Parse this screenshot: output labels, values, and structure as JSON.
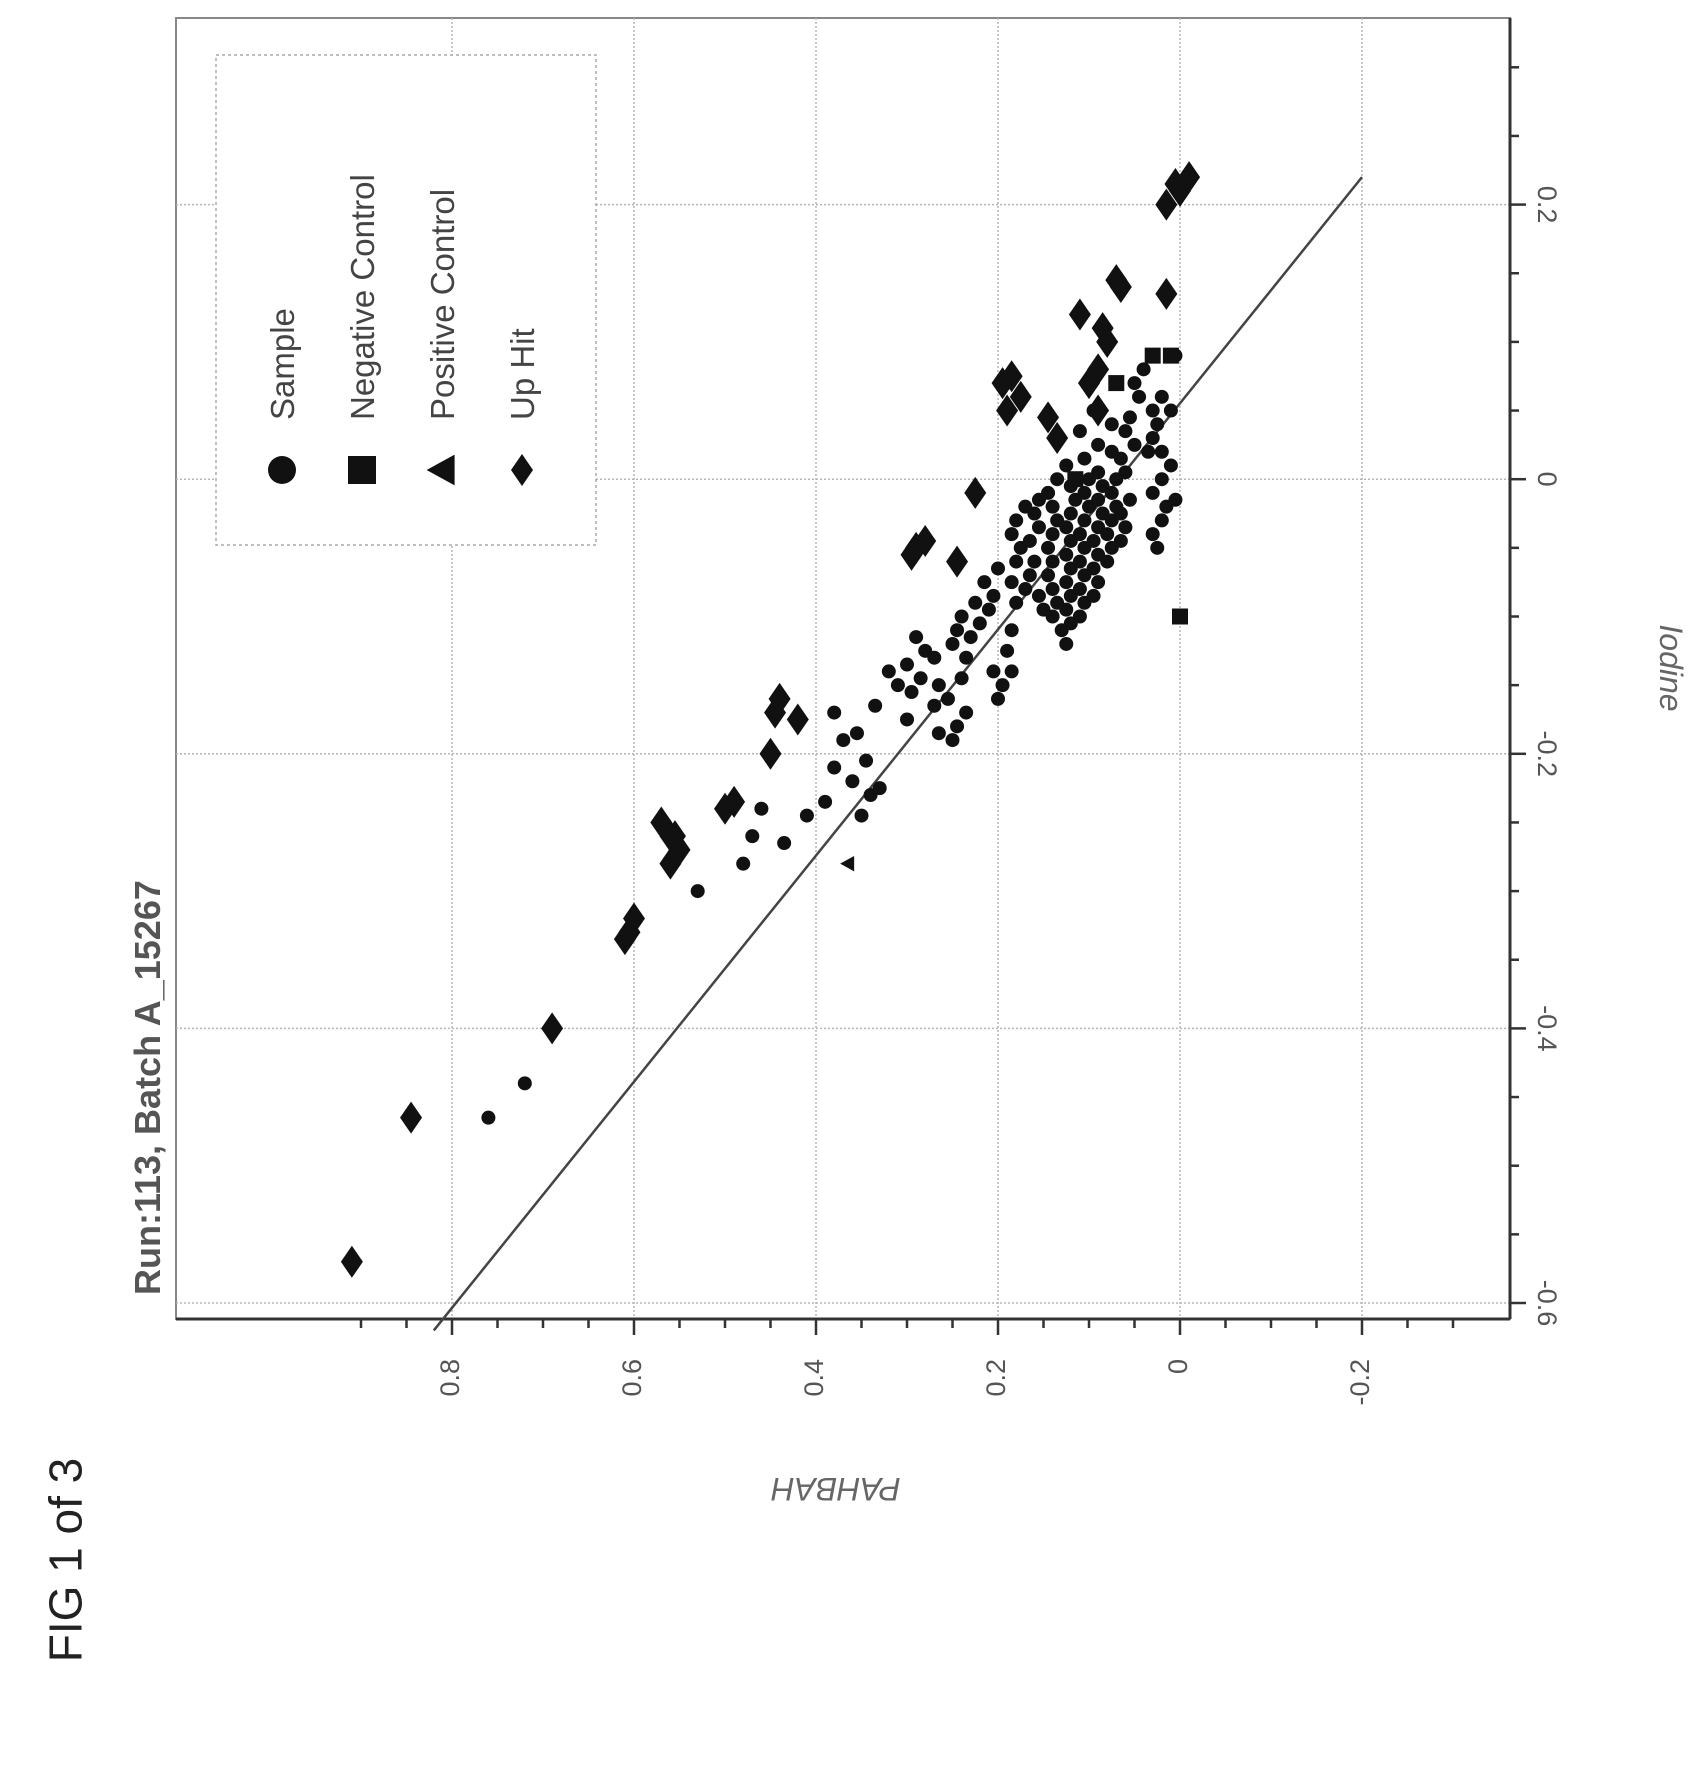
{
  "figure_label": "FIG 1 of 3",
  "chart_data": {
    "type": "scatter",
    "title": "Run:113, Batch A_15267",
    "xlabel": "Iodine",
    "ylabel": "PAHBAH",
    "xlim": [
      -0.62,
      0.31
    ],
    "ylim": [
      -0.31,
      0.93
    ],
    "x_ticks": [
      "-0.6",
      "-0.4",
      "-0.2",
      "0",
      "0.2"
    ],
    "y_ticks": [
      "-0.2",
      "0",
      "0.2",
      "0.4",
      "0.6",
      "0.8"
    ],
    "grid": true,
    "orientation": "rotated 90 degrees counter-clockwise (x axis runs vertically, y axis horizontally)",
    "legend_position": "top-right (rotated view)",
    "legend": [
      {
        "label": "Sample",
        "marker": "circle"
      },
      {
        "label": "Negative Control",
        "marker": "square"
      },
      {
        "label": "Positive Control",
        "marker": "triangle"
      },
      {
        "label": "Up Hit",
        "marker": "diamond"
      }
    ],
    "fit_line": {
      "x": [
        -0.62,
        0.22
      ],
      "y": [
        0.82,
        -0.2
      ]
    },
    "series": [
      {
        "name": "Sample",
        "marker": "circle",
        "points": [
          [
            -0.465,
            0.76
          ],
          [
            -0.44,
            0.72
          ],
          [
            -0.3,
            0.53
          ],
          [
            -0.28,
            0.48
          ],
          [
            -0.26,
            0.47
          ],
          [
            -0.24,
            0.46
          ],
          [
            -0.265,
            0.435
          ],
          [
            -0.245,
            0.41
          ],
          [
            -0.235,
            0.39
          ],
          [
            -0.21,
            0.38
          ],
          [
            -0.22,
            0.36
          ],
          [
            -0.19,
            0.37
          ],
          [
            -0.17,
            0.38
          ],
          [
            -0.23,
            0.34
          ],
          [
            -0.245,
            0.35
          ],
          [
            -0.225,
            0.33
          ],
          [
            -0.205,
            0.345
          ],
          [
            -0.185,
            0.355
          ],
          [
            -0.165,
            0.335
          ],
          [
            -0.15,
            0.31
          ],
          [
            -0.14,
            0.32
          ],
          [
            -0.155,
            0.295
          ],
          [
            -0.175,
            0.3
          ],
          [
            -0.145,
            0.285
          ],
          [
            -0.135,
            0.3
          ],
          [
            -0.125,
            0.28
          ],
          [
            -0.115,
            0.29
          ],
          [
            -0.13,
            0.27
          ],
          [
            -0.15,
            0.265
          ],
          [
            -0.165,
            0.27
          ],
          [
            -0.185,
            0.265
          ],
          [
            -0.19,
            0.25
          ],
          [
            -0.18,
            0.245
          ],
          [
            -0.16,
            0.255
          ],
          [
            -0.17,
            0.235
          ],
          [
            -0.12,
            0.25
          ],
          [
            -0.11,
            0.245
          ],
          [
            -0.1,
            0.24
          ],
          [
            -0.115,
            0.23
          ],
          [
            -0.13,
            0.235
          ],
          [
            -0.145,
            0.24
          ],
          [
            -0.105,
            0.22
          ],
          [
            -0.09,
            0.225
          ],
          [
            -0.095,
            0.21
          ],
          [
            -0.085,
            0.205
          ],
          [
            -0.075,
            0.215
          ],
          [
            -0.065,
            0.2
          ],
          [
            -0.14,
            0.205
          ],
          [
            -0.15,
            0.195
          ],
          [
            -0.16,
            0.2
          ],
          [
            -0.14,
            0.185
          ],
          [
            -0.125,
            0.19
          ],
          [
            -0.11,
            0.185
          ],
          [
            -0.09,
            0.18
          ],
          [
            -0.075,
            0.185
          ],
          [
            -0.06,
            0.18
          ],
          [
            -0.05,
            0.175
          ],
          [
            -0.04,
            0.185
          ],
          [
            -0.03,
            0.18
          ],
          [
            -0.02,
            0.17
          ],
          [
            -0.08,
            0.17
          ],
          [
            -0.07,
            0.165
          ],
          [
            -0.06,
            0.16
          ],
          [
            -0.045,
            0.165
          ],
          [
            -0.035,
            0.155
          ],
          [
            -0.025,
            0.16
          ],
          [
            -0.015,
            0.155
          ],
          [
            -0.085,
            0.155
          ],
          [
            -0.095,
            0.15
          ],
          [
            -0.1,
            0.14
          ],
          [
            -0.09,
            0.135
          ],
          [
            -0.08,
            0.14
          ],
          [
            -0.07,
            0.145
          ],
          [
            -0.06,
            0.14
          ],
          [
            -0.05,
            0.145
          ],
          [
            -0.04,
            0.14
          ],
          [
            -0.03,
            0.135
          ],
          [
            -0.02,
            0.14
          ],
          [
            -0.01,
            0.145
          ],
          [
            0.0,
            0.135
          ],
          [
            -0.11,
            0.13
          ],
          [
            -0.12,
            0.125
          ],
          [
            -0.105,
            0.12
          ],
          [
            -0.095,
            0.125
          ],
          [
            -0.085,
            0.12
          ],
          [
            -0.075,
            0.125
          ],
          [
            -0.065,
            0.12
          ],
          [
            -0.055,
            0.125
          ],
          [
            -0.045,
            0.12
          ],
          [
            -0.035,
            0.125
          ],
          [
            -0.025,
            0.12
          ],
          [
            -0.015,
            0.115
          ],
          [
            -0.005,
            0.12
          ],
          [
            0.01,
            0.125
          ],
          [
            -0.1,
            0.11
          ],
          [
            -0.09,
            0.105
          ],
          [
            -0.08,
            0.11
          ],
          [
            -0.07,
            0.105
          ],
          [
            -0.06,
            0.11
          ],
          [
            -0.05,
            0.105
          ],
          [
            -0.04,
            0.11
          ],
          [
            -0.03,
            0.105
          ],
          [
            -0.02,
            0.1
          ],
          [
            -0.01,
            0.105
          ],
          [
            0.0,
            0.1
          ],
          [
            0.015,
            0.105
          ],
          [
            -0.085,
            0.095
          ],
          [
            -0.075,
            0.09
          ],
          [
            -0.065,
            0.095
          ],
          [
            -0.055,
            0.09
          ],
          [
            -0.045,
            0.095
          ],
          [
            -0.035,
            0.09
          ],
          [
            -0.025,
            0.085
          ],
          [
            -0.015,
            0.09
          ],
          [
            -0.005,
            0.085
          ],
          [
            0.005,
            0.09
          ],
          [
            -0.06,
            0.08
          ],
          [
            -0.05,
            0.075
          ],
          [
            -0.04,
            0.08
          ],
          [
            -0.03,
            0.075
          ],
          [
            -0.02,
            0.07
          ],
          [
            -0.01,
            0.075
          ],
          [
            0.0,
            0.07
          ],
          [
            0.02,
            0.075
          ],
          [
            -0.045,
            0.065
          ],
          [
            -0.035,
            0.06
          ],
          [
            -0.025,
            0.065
          ],
          [
            -0.015,
            0.055
          ],
          [
            0.005,
            0.06
          ],
          [
            0.015,
            0.065
          ],
          [
            0.025,
            0.05
          ],
          [
            0.035,
            0.06
          ],
          [
            0.045,
            0.055
          ],
          [
            0.06,
            0.045
          ],
          [
            0.07,
            0.05
          ],
          [
            0.08,
            0.04
          ],
          [
            0.02,
            0.035
          ],
          [
            0.03,
            0.03
          ],
          [
            0.04,
            0.025
          ],
          [
            0.05,
            0.03
          ],
          [
            0.06,
            0.02
          ],
          [
            0.0,
            0.02
          ],
          [
            -0.01,
            0.03
          ],
          [
            -0.02,
            0.015
          ],
          [
            -0.03,
            0.02
          ],
          [
            -0.04,
            0.03
          ],
          [
            -0.05,
            0.025
          ],
          [
            0.01,
            0.01
          ],
          [
            0.02,
            0.02
          ],
          [
            -0.015,
            0.005
          ],
          [
            0.05,
            0.01
          ],
          [
            0.09,
            0.005
          ],
          [
            0.035,
            0.11
          ],
          [
            0.05,
            0.095
          ],
          [
            0.025,
            0.09
          ],
          [
            0.04,
            0.075
          ]
        ]
      },
      {
        "name": "Negative Control",
        "marker": "square",
        "points": [
          [
            -0.1,
            0.0
          ],
          [
            0.0,
            0.115
          ],
          [
            0.07,
            0.07
          ],
          [
            0.09,
            0.03
          ],
          [
            0.09,
            0.01
          ]
        ]
      },
      {
        "name": "Positive Control",
        "marker": "triangle",
        "points": [
          [
            -0.28,
            0.365
          ]
        ]
      },
      {
        "name": "Up Hit",
        "marker": "diamond",
        "points": [
          [
            -0.57,
            0.91
          ],
          [
            -0.465,
            0.845
          ],
          [
            -0.4,
            0.69
          ],
          [
            -0.335,
            0.61
          ],
          [
            -0.33,
            0.605
          ],
          [
            -0.32,
            0.6
          ],
          [
            -0.28,
            0.56
          ],
          [
            -0.27,
            0.55
          ],
          [
            -0.26,
            0.56
          ],
          [
            -0.25,
            0.57
          ],
          [
            -0.26,
            0.555
          ],
          [
            -0.24,
            0.5
          ],
          [
            -0.235,
            0.49
          ],
          [
            -0.2,
            0.45
          ],
          [
            -0.17,
            0.445
          ],
          [
            -0.175,
            0.42
          ],
          [
            -0.16,
            0.44
          ],
          [
            -0.05,
            0.29
          ],
          [
            -0.055,
            0.295
          ],
          [
            -0.045,
            0.28
          ],
          [
            -0.06,
            0.245
          ],
          [
            -0.01,
            0.225
          ],
          [
            0.05,
            0.19
          ],
          [
            0.06,
            0.175
          ],
          [
            0.075,
            0.185
          ],
          [
            0.07,
            0.195
          ],
          [
            0.03,
            0.135
          ],
          [
            0.045,
            0.145
          ],
          [
            0.05,
            0.09
          ],
          [
            0.07,
            0.1
          ],
          [
            0.08,
            0.09
          ],
          [
            0.1,
            0.08
          ],
          [
            0.11,
            0.085
          ],
          [
            0.12,
            0.11
          ],
          [
            0.14,
            0.065
          ],
          [
            0.145,
            0.07
          ],
          [
            0.135,
            0.015
          ],
          [
            0.2,
            0.015
          ],
          [
            0.21,
            0.0
          ],
          [
            0.22,
            -0.01
          ],
          [
            0.215,
            0.005
          ]
        ]
      }
    ]
  }
}
